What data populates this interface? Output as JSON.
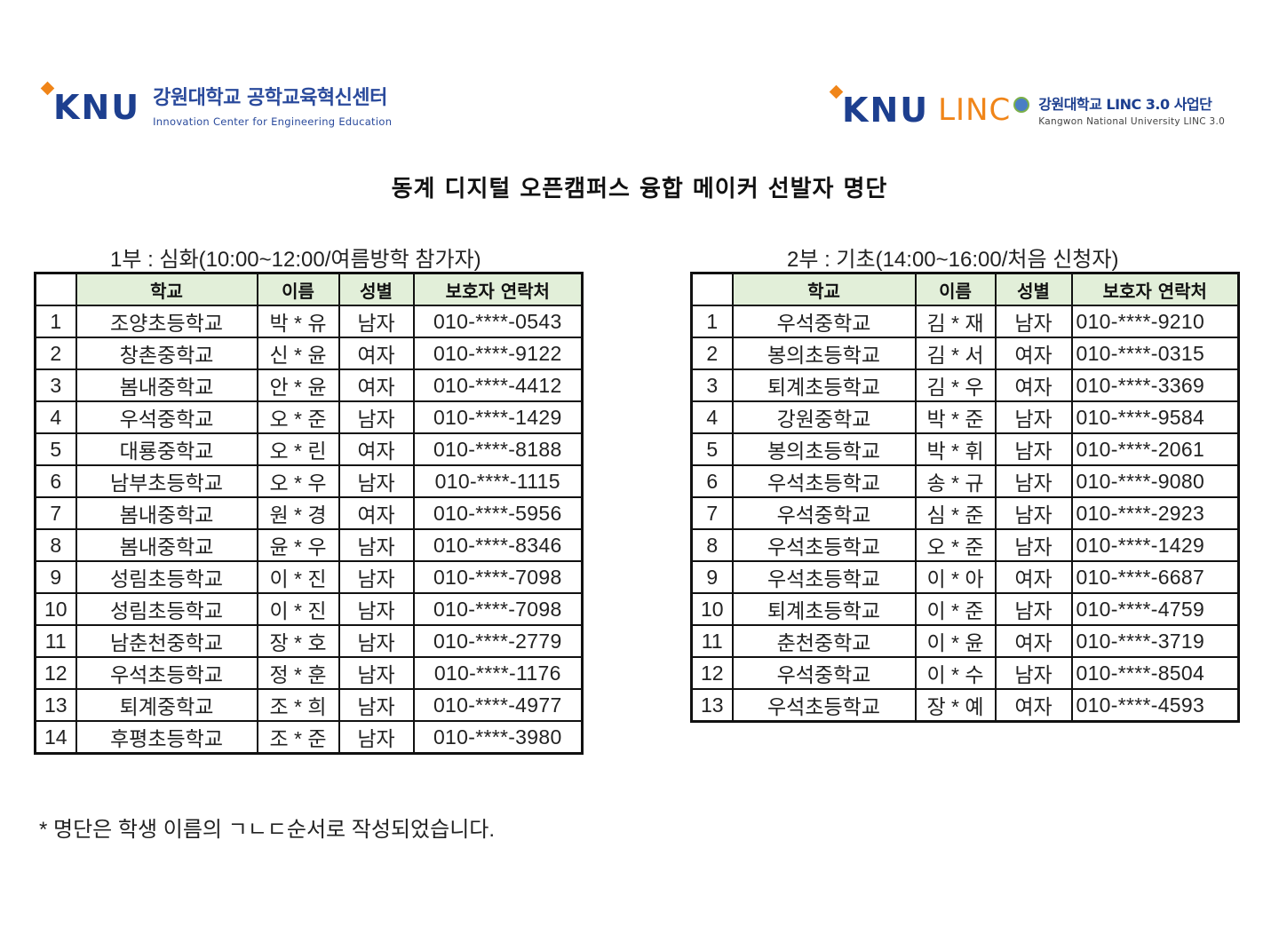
{
  "logos": {
    "left": {
      "mark": "KNU",
      "korean": "강원대학교 공학교육혁신센터",
      "english": "Innovation Center for Engineering Education"
    },
    "right": {
      "mark": "KNU",
      "linc": "LINC",
      "korean": "강원대학교 LINC 3.0 사업단",
      "english": "Kangwon National University LINC 3.0"
    }
  },
  "title": "동계 디지털 오픈캠퍼스 융합 메이커 선발자 명단",
  "headers": {
    "no": "",
    "school": "학교",
    "name": "이름",
    "gender": "성별",
    "phone": "보호자 연락처"
  },
  "section1": {
    "title": "1부 : 심화(10:00~12:00/여름방학 참가자)",
    "rows": [
      {
        "no": "1",
        "school": "조양초등학교",
        "name": "박 * 유",
        "gender": "남자",
        "phone": "010-****-0543"
      },
      {
        "no": "2",
        "school": "창촌중학교",
        "name": "신 * 윤",
        "gender": "여자",
        "phone": "010-****-9122"
      },
      {
        "no": "3",
        "school": "봄내중학교",
        "name": "안 * 윤",
        "gender": "여자",
        "phone": "010-****-4412"
      },
      {
        "no": "4",
        "school": "우석중학교",
        "name": "오 * 준",
        "gender": "남자",
        "phone": "010-****-1429"
      },
      {
        "no": "5",
        "school": "대룡중학교",
        "name": "오 * 린",
        "gender": "여자",
        "phone": "010-****-8188"
      },
      {
        "no": "6",
        "school": "남부초등학교",
        "name": "오 * 우",
        "gender": "남자",
        "phone": "010-****-1115"
      },
      {
        "no": "7",
        "school": "봄내중학교",
        "name": "원 * 경",
        "gender": "여자",
        "phone": "010-****-5956"
      },
      {
        "no": "8",
        "school": "봄내중학교",
        "name": "윤 * 우",
        "gender": "남자",
        "phone": "010-****-8346"
      },
      {
        "no": "9",
        "school": "성림초등학교",
        "name": "이 * 진",
        "gender": "남자",
        "phone": "010-****-7098"
      },
      {
        "no": "10",
        "school": "성림초등학교",
        "name": "이 * 진",
        "gender": "남자",
        "phone": "010-****-7098"
      },
      {
        "no": "11",
        "school": "남춘천중학교",
        "name": "장 * 호",
        "gender": "남자",
        "phone": "010-****-2779"
      },
      {
        "no": "12",
        "school": "우석초등학교",
        "name": "정 * 훈",
        "gender": "남자",
        "phone": "010-****-1176"
      },
      {
        "no": "13",
        "school": "퇴계중학교",
        "name": "조 * 희",
        "gender": "남자",
        "phone": "010-****-4977"
      },
      {
        "no": "14",
        "school": "후평초등학교",
        "name": "조 * 준",
        "gender": "남자",
        "phone": "010-****-3980"
      }
    ]
  },
  "section2": {
    "title": "2부 : 기초(14:00~16:00/처음 신청자)",
    "rows": [
      {
        "no": "1",
        "school": "우석중학교",
        "name": "김 * 재",
        "gender": "남자",
        "phone": "010-****-9210"
      },
      {
        "no": "2",
        "school": "봉의초등학교",
        "name": "김 * 서",
        "gender": "여자",
        "phone": "010-****-0315"
      },
      {
        "no": "3",
        "school": "퇴계초등학교",
        "name": "김 * 우",
        "gender": "여자",
        "phone": "010-****-3369"
      },
      {
        "no": "4",
        "school": "강원중학교",
        "name": "박 * 준",
        "gender": "남자",
        "phone": "010-****-9584"
      },
      {
        "no": "5",
        "school": "봉의초등학교",
        "name": "박 * 휘",
        "gender": "남자",
        "phone": "010-****-2061"
      },
      {
        "no": "6",
        "school": "우석초등학교",
        "name": "송 * 규",
        "gender": "남자",
        "phone": "010-****-9080"
      },
      {
        "no": "7",
        "school": "우석중학교",
        "name": "심 * 준",
        "gender": "남자",
        "phone": "010-****-2923"
      },
      {
        "no": "8",
        "school": "우석초등학교",
        "name": "오 * 준",
        "gender": "남자",
        "phone": "010-****-1429"
      },
      {
        "no": "9",
        "school": "우석초등학교",
        "name": "이 * 아",
        "gender": "여자",
        "phone": "010-****-6687"
      },
      {
        "no": "10",
        "school": "퇴계초등학교",
        "name": "이 * 준",
        "gender": "남자",
        "phone": "010-****-4759"
      },
      {
        "no": "11",
        "school": "춘천중학교",
        "name": "이 * 윤",
        "gender": "여자",
        "phone": "010-****-3719"
      },
      {
        "no": "12",
        "school": "우석중학교",
        "name": "이 * 수",
        "gender": "남자",
        "phone": "010-****-8504"
      },
      {
        "no": "13",
        "school": "우석초등학교",
        "name": "장 * 예",
        "gender": "여자",
        "phone": "010-****-4593"
      }
    ]
  },
  "footnote": "* 명단은 학생 이름의 ㄱㄴㄷ순서로 작성되었습니다.",
  "colors": {
    "header_bg": "#e2efd9",
    "brand_blue": "#1d3f8f",
    "brand_orange": "#f08519"
  }
}
